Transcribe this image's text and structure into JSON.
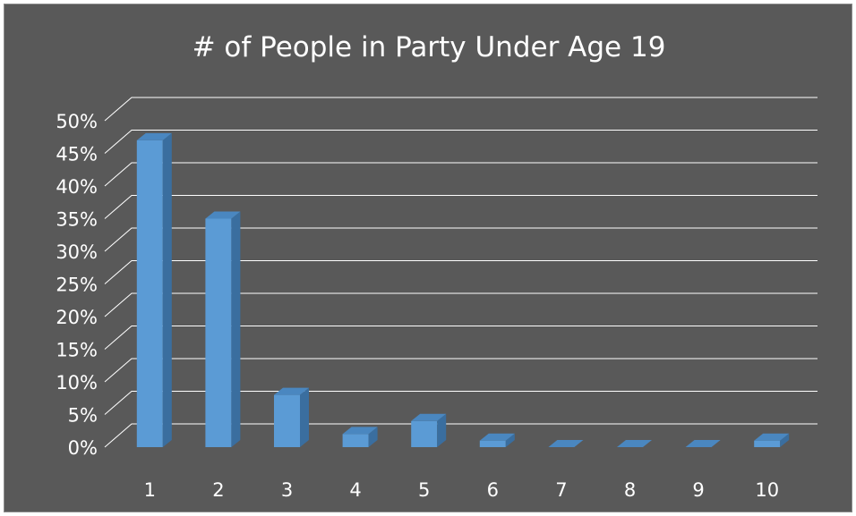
{
  "chart_data": {
    "type": "bar",
    "title": "# of People in Party Under Age 19",
    "xlabel": "",
    "ylabel": "",
    "categories": [
      "1",
      "2",
      "3",
      "4",
      "5",
      "6",
      "7",
      "8",
      "9",
      "10"
    ],
    "values": [
      47,
      35,
      8,
      2,
      4,
      1,
      0,
      0,
      0,
      1
    ],
    "yticks": [
      "0%",
      "5%",
      "10%",
      "15%",
      "20%",
      "25%",
      "30%",
      "35%",
      "40%",
      "45%",
      "50%"
    ],
    "ylim": [
      0,
      50
    ],
    "grid": true,
    "legend": "none",
    "colors": {
      "background": "#595959",
      "bar_front": "#5b9bd5",
      "bar_side": "#3a6e9f",
      "bar_top": "#4a87c0",
      "grid": "#ffffff",
      "text": "#ffffff"
    }
  }
}
